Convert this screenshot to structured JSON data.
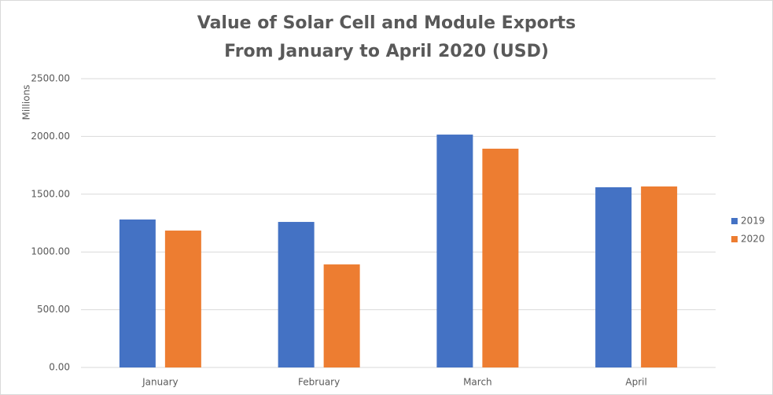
{
  "chart_data": {
    "type": "bar",
    "title": "Value of Solar Cell and Module Exports From January to April 2020 (USD)",
    "y_label": "Millions",
    "categories": [
      "January",
      "February",
      "March",
      "April"
    ],
    "series": [
      {
        "name": "2019",
        "color": "#4472c4",
        "values": [
          1281,
          1260,
          2016,
          1560
        ]
      },
      {
        "name": "2020",
        "color": "#ed7d31",
        "values": [
          1185,
          892,
          1894,
          1567
        ]
      }
    ],
    "ylim": [
      0,
      2500
    ],
    "yticks": [
      {
        "value": 0,
        "label": "0.00"
      },
      {
        "value": 500,
        "label": "500.00"
      },
      {
        "value": 1000,
        "label": "1000.00"
      },
      {
        "value": 1500,
        "label": "1500.00"
      },
      {
        "value": 2000,
        "label": "2000.00"
      },
      {
        "value": 2500,
        "label": "2500.00"
      }
    ],
    "grid": true,
    "legend": "right"
  }
}
